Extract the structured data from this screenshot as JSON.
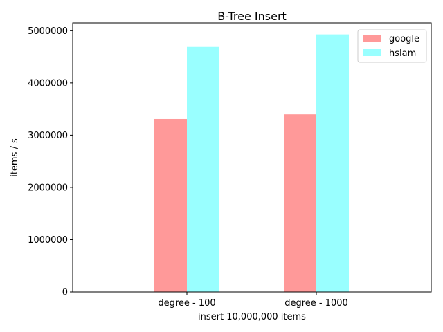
{
  "chart_data": {
    "type": "bar",
    "title": "B-Tree Insert",
    "xlabel": "insert 10,000,000 items",
    "ylabel": "items / s",
    "categories": [
      "degree - 100",
      "degree - 1000"
    ],
    "series": [
      {
        "name": "google",
        "values": [
          3310000,
          3400000
        ],
        "color": "#ff9999"
      },
      {
        "name": "hslam",
        "values": [
          4690000,
          4930000
        ],
        "color": "#99ffff"
      }
    ],
    "ylim": [
      0,
      5150000
    ],
    "yticks": [
      0,
      1000000,
      2000000,
      3000000,
      4000000,
      5000000
    ],
    "ytick_labels": [
      "0",
      "1000000",
      "2000000",
      "3000000",
      "4000000",
      "5000000"
    ],
    "grid": false,
    "legend_position": "top-right"
  }
}
